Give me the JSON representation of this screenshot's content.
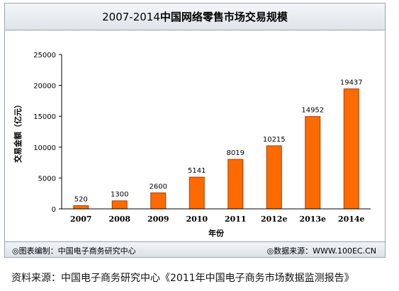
{
  "chart_data": {
    "type": "bar",
    "title_year": "2007-2014",
    "title_main": "中国网络零售市场交易规模",
    "categories": [
      "2007",
      "2008",
      "2009",
      "2010",
      "2011",
      "2012e",
      "2013e",
      "2014e"
    ],
    "values": [
      520,
      1300,
      2600,
      5141,
      8019,
      10215,
      14952,
      19437
    ],
    "xlabel": "年份",
    "ylabel": "交易金额（亿元）",
    "ylim": [
      0,
      25000
    ],
    "yticks": [
      "0",
      "5000",
      "10000",
      "15000",
      "20000",
      "25000"
    ],
    "grid": false,
    "bar_color": "#ff6a00",
    "legend": "none"
  },
  "footer": {
    "left": "◎图表编制：中国电子商务研究中心",
    "right": "◎数据来源：WWW.100EC.CN"
  },
  "source_note": "资料来源：中国电子商务研究中心《2011年中国电子商务市场数据监测报告》"
}
